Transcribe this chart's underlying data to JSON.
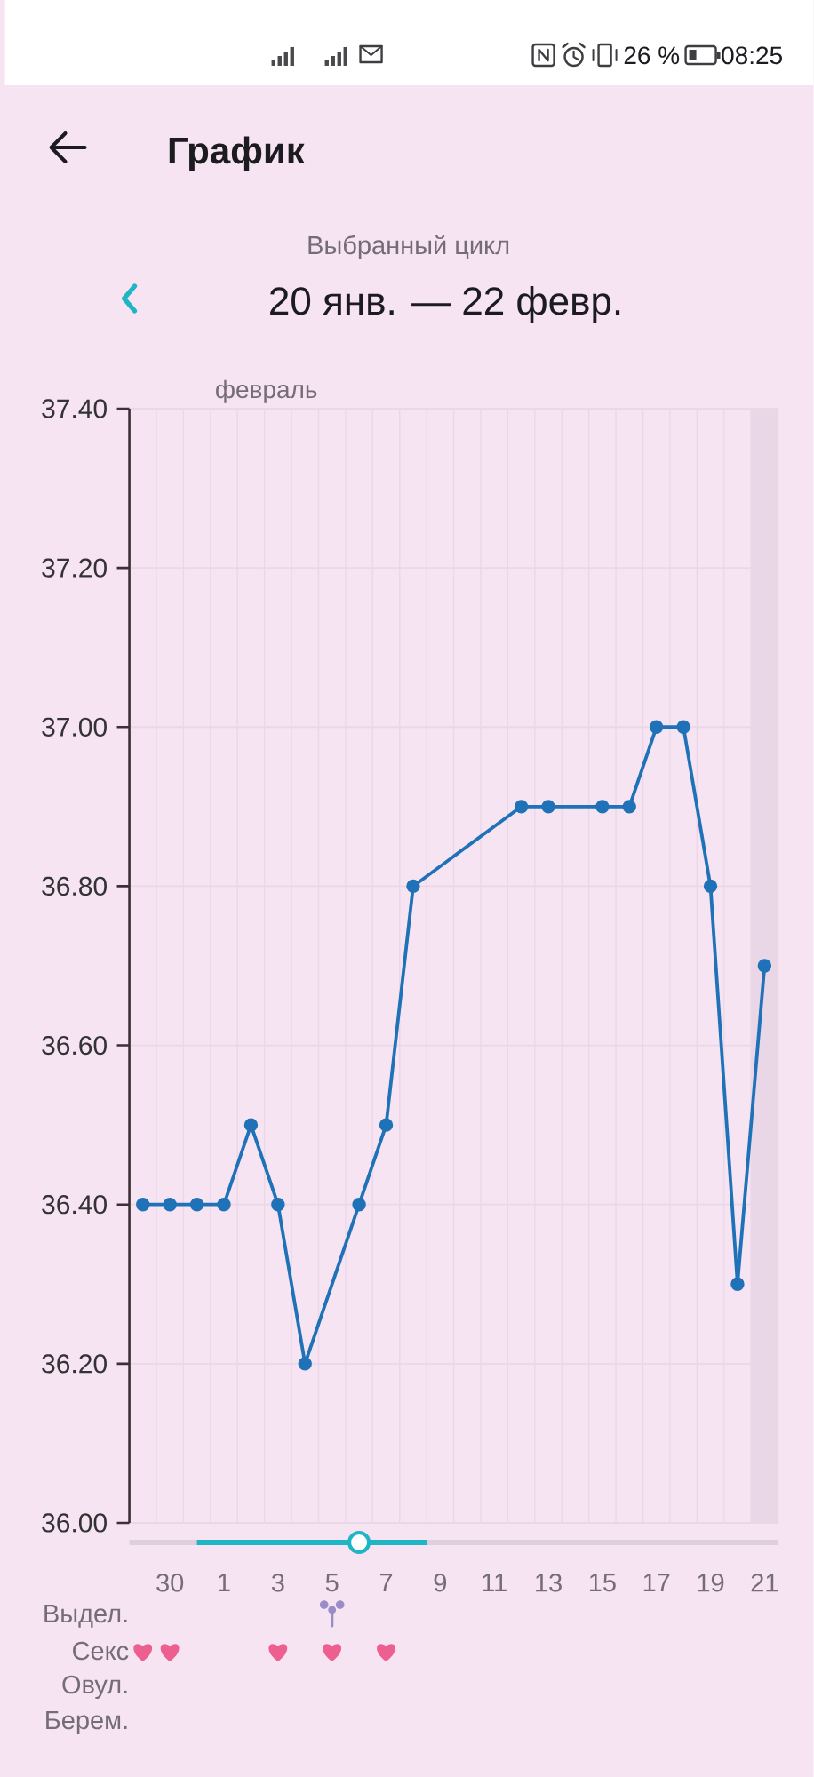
{
  "chart_data": {
    "type": "line",
    "title": "График",
    "annotations": [
      "Выбранный цикл",
      "20 янв. — 22 февр.",
      "февраль",
      "Выдел.",
      "Секс",
      "Овул.",
      "Берем.",
      "26 %",
      "08:25"
    ],
    "categories": [
      null,
      "30",
      null,
      "1",
      null,
      "3",
      null,
      "5",
      null,
      "7",
      null,
      "9",
      null,
      "11",
      null,
      "13",
      null,
      "15",
      null,
      "17",
      null,
      "19",
      null,
      "21"
    ],
    "values": [
      36.4,
      36.4,
      36.4,
      36.4,
      36.5,
      36.4,
      36.2,
      null,
      36.4,
      36.5,
      36.8,
      null,
      null,
      null,
      36.9,
      36.9,
      null,
      36.9,
      36.9,
      37.0,
      37.0,
      36.8,
      36.3,
      36.7
    ],
    "color": "#1f72b8",
    "marker": "circle",
    "line_style": "solid",
    "grid": true,
    "ylim": [
      36.0,
      37.4
    ],
    "yticks": [
      {
        "value": 36.0,
        "label": "36.00"
      },
      {
        "value": 36.2,
        "label": "36.20"
      },
      {
        "value": 36.4,
        "label": "36.40"
      },
      {
        "value": 36.6,
        "label": "36.60"
      },
      {
        "value": 36.8,
        "label": "36.80"
      },
      {
        "value": 37.0,
        "label": "37.00"
      },
      {
        "value": 37.2,
        "label": "37.20"
      },
      {
        "value": 37.4,
        "label": "37.40"
      }
    ],
    "bands": [
      {
        "axis": "x",
        "from": "21",
        "to": "21",
        "color": "#e9d7e7"
      }
    ]
  }
}
